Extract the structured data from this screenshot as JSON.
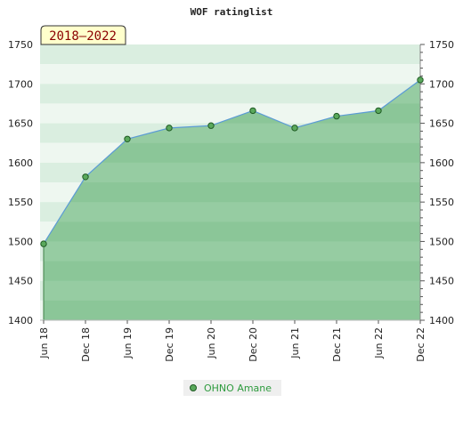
{
  "chart_data": {
    "type": "area",
    "title": "WOF ratinglist",
    "badge": "2018–2022",
    "x_labels": [
      "Jun 18",
      "Dec 18",
      "Jun 19",
      "Dec 19",
      "Jun 20",
      "Dec 20",
      "Jun 21",
      "Dec 21",
      "Jun 22",
      "Dec 22"
    ],
    "ylim": [
      1400,
      1750
    ],
    "y_ticks": [
      1400,
      1450,
      1500,
      1550,
      1600,
      1650,
      1700,
      1750
    ],
    "series": [
      {
        "name": "OHNO Amane",
        "values": [
          1497,
          1582,
          1630,
          1644,
          1647,
          1666,
          1644,
          1659,
          1666,
          1705
        ]
      }
    ],
    "legend_position": "bottom",
    "colors": {
      "line": "#5b9bd5",
      "fill": "#7fc08d",
      "marker": "#5aa95c",
      "marker_border": "#1f5a23",
      "badge_bg": "#ffffcc",
      "legend_text": "#2e9b3e"
    }
  }
}
